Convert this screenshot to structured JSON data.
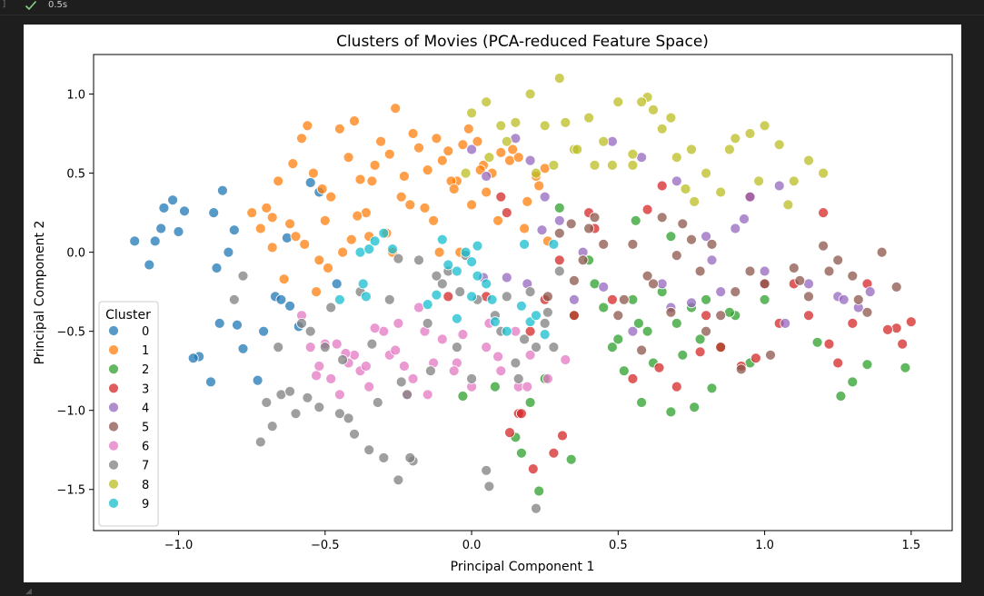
{
  "notebook": {
    "cell_bracket": "]",
    "status_icon": "check-icon",
    "exec_time": "0.5s"
  },
  "colors": {
    "0": "#1f77b4",
    "1": "#ff7f0e",
    "2": "#2ca02c",
    "3": "#d62728",
    "4": "#9467bd",
    "5": "#8c564b",
    "6": "#e377c2",
    "7": "#7f7f7f",
    "8": "#bcbd22",
    "9": "#17becf"
  },
  "chart_data": {
    "type": "scatter",
    "title": "Clusters of Movies (PCA-reduced Feature Space)",
    "xlabel": "Principal Component 1",
    "ylabel": "Principal Component 2",
    "xlim": [
      -1.29,
      1.64
    ],
    "ylim": [
      -1.76,
      1.25
    ],
    "xticks": [
      "−1.0",
      "−0.5",
      "0.0",
      "0.5",
      "1.0",
      "1.5"
    ],
    "xtick_values": [
      -1.0,
      -0.5,
      0.0,
      0.5,
      1.0,
      1.5
    ],
    "yticks": [
      "1.0",
      "0.5",
      "0.0",
      "−0.5",
      "−1.0",
      "−1.5"
    ],
    "ytick_values": [
      1.0,
      0.5,
      0.0,
      -0.5,
      -1.0,
      -1.5
    ],
    "grid": false,
    "legend_title": "Cluster",
    "legend_location": "lower-left",
    "series": [
      {
        "name": "0",
        "x": [
          -1.15,
          -1.08,
          -1.05,
          -1.02,
          -0.98,
          -1.0,
          -1.06,
          -1.1,
          -0.88,
          -0.85,
          -0.81,
          -0.83,
          -0.8,
          -0.78,
          -0.73,
          -0.93,
          -0.95,
          -0.89,
          -0.67,
          -0.63,
          -0.55,
          -0.52,
          -0.46,
          -0.62,
          -0.59,
          -0.65,
          -0.71,
          -0.86,
          -0.87
        ],
        "y": [
          0.07,
          0.07,
          0.28,
          0.33,
          0.26,
          0.13,
          0.15,
          -0.08,
          0.25,
          0.39,
          0.14,
          0.0,
          -0.46,
          -0.61,
          -0.81,
          -0.66,
          -0.67,
          -0.82,
          -0.28,
          0.09,
          0.44,
          0.38,
          -0.2,
          -0.34,
          -0.47,
          -0.3,
          -0.5,
          -0.45,
          -0.1
        ]
      },
      {
        "name": "1",
        "x": [
          -0.72,
          -0.68,
          -0.66,
          -0.61,
          -0.58,
          -0.56,
          -0.54,
          -0.51,
          -0.48,
          -0.45,
          -0.42,
          -0.4,
          -0.38,
          -0.36,
          -0.33,
          -0.31,
          -0.28,
          -0.26,
          -0.23,
          -0.2,
          -0.18,
          -0.15,
          -0.12,
          -0.1,
          -0.08,
          -0.05,
          -0.03,
          -0.01,
          0.02,
          0.04,
          0.07,
          0.1,
          0.13,
          0.16,
          0.19,
          0.22,
          0.25,
          -0.7,
          -0.62,
          -0.57,
          -0.49,
          -0.44,
          -0.35,
          -0.29,
          -0.21,
          -0.13,
          -0.07,
          0.0,
          0.05,
          -0.5,
          -0.41,
          -0.34,
          -0.24,
          -0.16,
          -0.06,
          0.03,
          0.14,
          0.23,
          -0.64,
          -0.53,
          -0.39,
          -0.27,
          -0.11,
          -0.04,
          0.09,
          0.18,
          0.26,
          -0.75,
          -0.68,
          -0.6,
          -0.52
        ],
        "y": [
          0.15,
          0.22,
          0.45,
          0.56,
          0.72,
          0.8,
          0.5,
          0.4,
          0.35,
          0.78,
          0.6,
          0.83,
          0.46,
          0.25,
          0.55,
          0.7,
          0.62,
          0.91,
          0.48,
          0.75,
          0.66,
          0.52,
          0.72,
          0.58,
          0.64,
          0.45,
          0.68,
          0.78,
          0.7,
          0.55,
          0.5,
          0.63,
          0.58,
          0.6,
          0.32,
          0.48,
          0.53,
          0.28,
          0.18,
          0.05,
          -0.1,
          0.0,
          0.1,
          0.12,
          0.3,
          0.2,
          0.45,
          0.3,
          0.38,
          0.2,
          0.08,
          0.45,
          0.35,
          0.28,
          0.4,
          0.52,
          0.65,
          0.42,
          -0.17,
          -0.25,
          0.23,
          0.0,
          0.0,
          0.0,
          0.2,
          0.15,
          0.07,
          0.25,
          0.03,
          0.1,
          -0.05
        ]
      },
      {
        "name": "2",
        "x": [
          0.4,
          0.45,
          0.5,
          0.55,
          0.6,
          0.62,
          0.65,
          0.7,
          0.72,
          0.75,
          0.78,
          0.8,
          0.85,
          0.9,
          0.95,
          1.0,
          0.3,
          0.35,
          0.42,
          0.48,
          0.52,
          0.58,
          0.25,
          0.2,
          0.15,
          0.17,
          0.23,
          0.34,
          0.56,
          0.68,
          1.3,
          1.35,
          1.48,
          1.18,
          1.26,
          0.57,
          0.76,
          -0.03,
          0.08,
          0.68,
          0.88,
          0.82
        ],
        "y": [
          -0.05,
          -0.35,
          -0.55,
          -0.3,
          -0.5,
          -0.7,
          -0.25,
          -0.45,
          -0.65,
          -0.35,
          -0.55,
          -0.3,
          -0.6,
          -0.4,
          -0.7,
          -0.3,
          0.28,
          -0.4,
          -0.2,
          -0.6,
          -0.75,
          -0.95,
          -0.8,
          -0.95,
          -1.17,
          -1.27,
          -1.51,
          -1.31,
          0.2,
          0.1,
          -0.82,
          -0.71,
          -0.73,
          -0.57,
          -0.91,
          -0.45,
          -0.98,
          -0.91,
          -0.85,
          -1.01,
          -0.38,
          -0.86
        ]
      },
      {
        "name": "3",
        "x": [
          0.1,
          0.12,
          0.2,
          0.25,
          0.3,
          0.35,
          0.4,
          0.42,
          0.6,
          0.65,
          0.7,
          0.8,
          0.85,
          0.95,
          1.0,
          1.05,
          1.1,
          1.15,
          1.2,
          1.25,
          1.3,
          1.35,
          1.45,
          1.5,
          1.22,
          0.55,
          0.48,
          -0.08,
          0.05,
          0.16,
          0.21,
          0.28,
          0.31,
          0.64,
          0.78,
          0.92,
          0.97,
          1.42,
          1.47,
          0.17,
          0.13
        ],
        "y": [
          0.35,
          0.25,
          -0.5,
          -0.3,
          -0.05,
          -0.4,
          0.25,
          0.15,
          0.27,
          0.42,
          -0.85,
          -0.4,
          -0.6,
          0.35,
          -0.2,
          -0.45,
          -0.2,
          -0.4,
          0.25,
          -0.7,
          -0.45,
          -0.2,
          -0.48,
          -0.44,
          -0.58,
          -0.8,
          -0.3,
          -0.28,
          -0.28,
          -1.02,
          -1.37,
          -1.27,
          -1.16,
          -0.73,
          -0.63,
          -0.72,
          -0.67,
          -0.49,
          -0.58,
          -1.02,
          -1.14
        ]
      },
      {
        "name": "4",
        "x": [
          0.0,
          0.05,
          0.15,
          0.2,
          0.25,
          0.3,
          0.35,
          0.45,
          0.55,
          0.65,
          0.7,
          0.75,
          0.8,
          0.85,
          0.9,
          0.95,
          1.0,
          1.05,
          1.15,
          1.25,
          1.32,
          0.12,
          0.19,
          0.24,
          0.38,
          0.58,
          0.68,
          0.82,
          1.07,
          1.27,
          1.36,
          0.48,
          0.93,
          0.04
        ],
        "y": [
          0.65,
          0.48,
          0.72,
          0.58,
          0.35,
          0.2,
          -0.3,
          -0.22,
          -0.5,
          -0.2,
          0.45,
          -0.32,
          0.1,
          -0.25,
          0.15,
          0.35,
          -0.12,
          0.42,
          -0.2,
          -0.28,
          -0.35,
          -0.16,
          -0.2,
          0.14,
          0.0,
          0.6,
          -0.35,
          -0.05,
          -0.45,
          -0.3,
          -0.25,
          0.7,
          0.21,
          -0.16
        ]
      },
      {
        "name": "5",
        "x": [
          0.3,
          0.35,
          0.4,
          0.45,
          0.5,
          0.55,
          0.6,
          0.65,
          0.7,
          0.75,
          0.8,
          0.85,
          0.9,
          0.95,
          1.0,
          1.1,
          1.15,
          1.2,
          1.25,
          1.3,
          1.35,
          1.4,
          1.45,
          0.38,
          0.52,
          0.62,
          0.72,
          0.82,
          0.92,
          1.02,
          1.12,
          1.22,
          1.32,
          0.42,
          0.58,
          0.68,
          0.78,
          0.26,
          0.34
        ],
        "y": [
          0.12,
          -0.18,
          0.15,
          0.05,
          -0.4,
          0.05,
          -0.15,
          0.22,
          -0.02,
          0.08,
          -0.5,
          -0.4,
          -0.25,
          -0.12,
          -0.2,
          -0.1,
          -0.28,
          0.04,
          -0.05,
          -0.15,
          -0.38,
          0.0,
          -0.22,
          -0.05,
          -0.3,
          -0.2,
          0.18,
          0.05,
          -0.74,
          -0.65,
          -0.18,
          -0.12,
          -0.3,
          0.22,
          -0.62,
          -0.38,
          -0.12,
          -0.28,
          0.18
        ]
      },
      {
        "name": "6",
        "x": [
          -0.55,
          -0.52,
          -0.5,
          -0.48,
          -0.45,
          -0.42,
          -0.4,
          -0.38,
          -0.35,
          -0.3,
          -0.28,
          -0.25,
          -0.2,
          -0.15,
          -0.1,
          -0.05,
          0.0,
          0.05,
          0.1,
          0.15,
          0.2,
          -0.58,
          -0.46,
          -0.36,
          -0.26,
          -0.16,
          -0.06,
          0.06,
          0.16,
          0.26,
          0.32,
          -0.53,
          -0.43,
          -0.33,
          -0.23,
          -0.13,
          -0.03,
          0.09,
          0.19,
          -0.18,
          -0.22
        ],
        "y": [
          -0.6,
          -0.72,
          -0.58,
          -0.8,
          -0.9,
          -0.7,
          -0.65,
          -0.75,
          -0.85,
          -0.5,
          -0.65,
          -0.45,
          -0.8,
          -0.9,
          -0.55,
          -0.7,
          -0.85,
          -0.6,
          -0.75,
          -0.5,
          -0.65,
          -0.4,
          -0.58,
          -0.72,
          -0.62,
          -0.5,
          -0.75,
          -0.45,
          -0.85,
          -0.8,
          -0.68,
          -0.78,
          -0.64,
          -0.48,
          -0.72,
          -0.7,
          -0.52,
          -0.66,
          -0.85,
          -0.35,
          -0.9
        ]
      },
      {
        "name": "7",
        "x": [
          -0.7,
          -0.68,
          -0.65,
          -0.6,
          -0.55,
          -0.5,
          -0.45,
          -0.4,
          -0.35,
          -0.3,
          -0.25,
          -0.2,
          -0.15,
          -0.1,
          -0.05,
          0.0,
          0.05,
          0.1,
          0.15,
          0.2,
          0.25,
          0.3,
          -0.72,
          -0.62,
          -0.52,
          -0.42,
          -0.32,
          -0.22,
          -0.12,
          -0.02,
          0.08,
          0.18,
          0.28,
          -0.58,
          -0.48,
          -0.38,
          -0.28,
          -0.18,
          -0.08,
          0.02,
          0.12,
          0.22,
          -0.66,
          -0.56,
          -0.44,
          -0.34,
          -0.24,
          -0.14,
          -0.04,
          0.06,
          0.16,
          0.26,
          -0.81,
          -0.78,
          -0.25,
          -0.21,
          0.22
        ],
        "y": [
          -0.95,
          -1.1,
          -0.9,
          -1.02,
          -0.5,
          -0.6,
          -1.02,
          -1.15,
          -1.25,
          -1.3,
          -1.44,
          -1.32,
          -0.45,
          -0.2,
          -0.6,
          -0.8,
          -1.38,
          -0.5,
          -0.7,
          -0.25,
          -0.45,
          -0.12,
          -1.2,
          -0.88,
          -0.98,
          -1.05,
          -0.95,
          -0.9,
          -0.15,
          -0.02,
          -0.4,
          -0.55,
          -0.6,
          -0.45,
          -0.35,
          -0.25,
          -0.3,
          -0.05,
          -0.12,
          -0.3,
          -0.28,
          -0.6,
          -0.6,
          -0.92,
          -0.68,
          -0.58,
          -0.82,
          -0.75,
          -0.25,
          -1.48,
          -0.8,
          -0.38,
          -0.3,
          -0.15,
          -0.04,
          -1.3,
          -1.62
        ]
      },
      {
        "name": "8",
        "x": [
          0.0,
          0.05,
          0.1,
          0.15,
          0.2,
          0.25,
          0.3,
          0.35,
          0.4,
          0.45,
          0.5,
          0.55,
          0.6,
          0.65,
          0.7,
          0.75,
          0.8,
          0.85,
          0.9,
          0.95,
          1.0,
          1.05,
          1.1,
          1.15,
          1.2,
          0.28,
          0.32,
          0.48,
          0.62,
          0.73,
          0.88,
          0.98,
          0.42,
          0.55,
          0.68,
          0.22,
          0.12,
          -0.02,
          0.36,
          0.58,
          0.76,
          1.08,
          0.06
        ],
        "y": [
          0.88,
          0.95,
          0.8,
          0.82,
          1.0,
          0.8,
          1.1,
          0.65,
          0.85,
          0.7,
          0.95,
          0.55,
          0.98,
          0.78,
          0.6,
          0.65,
          0.5,
          0.38,
          0.72,
          0.75,
          0.8,
          0.68,
          0.45,
          0.58,
          0.5,
          0.55,
          0.82,
          0.55,
          0.9,
          0.4,
          0.65,
          0.45,
          0.55,
          0.62,
          0.85,
          0.5,
          0.7,
          0.5,
          0.65,
          0.95,
          0.32,
          0.3,
          0.6
        ]
      },
      {
        "name": "9",
        "x": [
          -0.38,
          -0.36,
          -0.35,
          -0.33,
          -0.3,
          -0.1,
          -0.08,
          -0.05,
          -0.02,
          0.0,
          0.02,
          0.05,
          0.08,
          0.12,
          0.17,
          0.2,
          0.25,
          -0.15,
          -0.12,
          -0.05,
          0.0,
          0.18,
          0.28,
          -0.45,
          -0.37,
          -0.27,
          0.02,
          0.07,
          0.22
        ],
        "y": [
          0.0,
          -0.28,
          0.02,
          0.07,
          0.12,
          0.08,
          -0.08,
          -0.12,
          0.0,
          -0.06,
          -0.15,
          -0.2,
          -0.44,
          -0.5,
          -0.34,
          -0.44,
          -0.52,
          -0.33,
          -0.27,
          -0.42,
          -0.28,
          0.05,
          0.05,
          -0.3,
          -0.2,
          0.02,
          0.04,
          -0.3,
          -0.4
        ]
      }
    ]
  }
}
